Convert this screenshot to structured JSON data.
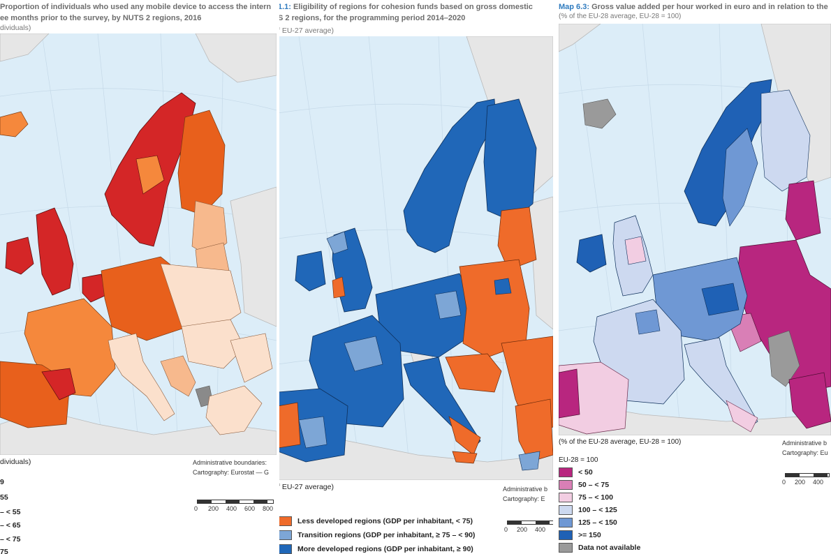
{
  "panel1": {
    "title_line1": "Proportion of individuals who used any mobile device to access the intern",
    "title_line2": "ee months prior to the survey, by NUTS 2 regions, 2016",
    "subtitle": "dividuals)",
    "unit": "dividuals)",
    "credits_line1": "Administrative boundaries:",
    "credits_line2": "Cartography: Eurostat — G",
    "scale_labels": [
      "0",
      "200",
      "400",
      "600",
      "800"
    ],
    "legend": [
      {
        "label": "9",
        "color": "#e5e5e5"
      },
      {
        "label": "55",
        "color": "#fbe0cc"
      },
      {
        "label": "– < 55",
        "color": "#f7b98d"
      },
      {
        "label": "– < 65",
        "color": "#f5883c"
      },
      {
        "label": "– < 75",
        "color": "#e8601c"
      },
      {
        "label": "75",
        "color": "#d42627"
      }
    ],
    "colors": {
      "sea": "#dcedf8",
      "nonmember": "#e6e6e6",
      "grey": "#8a8a8a"
    }
  },
  "panel2": {
    "title_maplabel": "1.1:",
    "title_line1": " Eligibility of regions for cohesion funds based on gross domestic",
    "title_line2": "S 2 regions, for the programming period 2014–2020",
    "subtitle": "f EU-27 average)",
    "unit": "f EU-27 average)",
    "credits_line1": "Administrative b",
    "credits_line2": "Cartography: E",
    "scale_labels": [
      "0",
      "200",
      "400"
    ],
    "legend": [
      {
        "label": "Less developed regions (GDP per inhabitant, < 75)",
        "color": "#ef6b2a"
      },
      {
        "label": "Transition regions (GDP per inhabitant, ≥ 75 – < 90)",
        "color": "#7da6d6"
      },
      {
        "label": "More developed regions (GDP per inhabitant, ≥ 90)",
        "color": "#2067b8"
      }
    ],
    "colors": {
      "sea": "#dcedf8",
      "nonmember": "#e6e6e6"
    }
  },
  "panel3": {
    "title_maplabel": "Map 6.3:",
    "title_line1": " Gross value added per hour worked in euro and in relation to the",
    "title_line2": "(% of the EU-28 average, EU-28 = 100)",
    "unit": "(% of the EU-28 average, EU-28 = 100)",
    "credits_line1": "Administrative b",
    "credits_line2": "Cartography: Eu",
    "scale_labels": [
      "0",
      "200",
      "400"
    ],
    "legend_header": "EU-28 = 100",
    "legend": [
      {
        "label": "< 50",
        "color": "#b8267f"
      },
      {
        "label": "50 – < 75",
        "color": "#d97fb6"
      },
      {
        "label": "75 – < 100",
        "color": "#f2cde2"
      },
      {
        "label": "100 – < 125",
        "color": "#cdd9f0"
      },
      {
        "label": "125 – < 150",
        "color": "#6f98d4"
      },
      {
        "label": ">= 150",
        "color": "#1f61b5"
      },
      {
        "label": "Data not available",
        "color": "#9a9a9a"
      }
    ],
    "colors": {
      "sea": "#dcedf8",
      "nonmember": "#e6e6e6"
    }
  }
}
